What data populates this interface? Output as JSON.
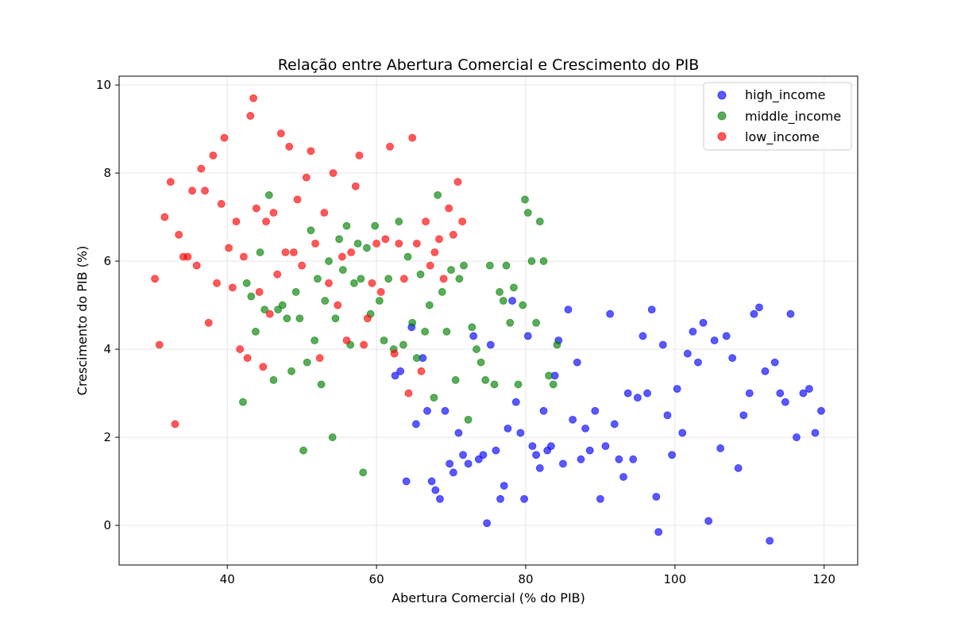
{
  "chart_data": {
    "type": "scatter",
    "title": "Relação entre Abertura Comercial e Crescimento do PIB",
    "xlabel": "Abertura Comercial (% do PIB)",
    "ylabel": "Crescimento do PIB (%)",
    "xlim": [
      25.5,
      124.5
    ],
    "ylim": [
      -0.9,
      10.2
    ],
    "x_ticks": [
      40,
      60,
      80,
      100,
      120
    ],
    "y_ticks": [
      0,
      2,
      4,
      6,
      8,
      10
    ],
    "x_tick_labels": [
      "40",
      "60",
      "80",
      "100",
      "120"
    ],
    "y_tick_labels": [
      "0",
      "2",
      "4",
      "6",
      "8",
      "10"
    ],
    "grid": true,
    "legend_position": "top-right",
    "marker_alpha": 0.65,
    "series": [
      {
        "name": "high_income",
        "color": "#0000ff",
        "points": [
          [
            62.5,
            3.4
          ],
          [
            63.2,
            3.5
          ],
          [
            64,
            1.0
          ],
          [
            64.7,
            4.5
          ],
          [
            65.3,
            2.3
          ],
          [
            66.2,
            3.8
          ],
          [
            66.8,
            2.6
          ],
          [
            67.4,
            1.0
          ],
          [
            67.9,
            0.8
          ],
          [
            68.5,
            0.6
          ],
          [
            69.2,
            2.6
          ],
          [
            69.8,
            1.4
          ],
          [
            70.3,
            1.2
          ],
          [
            71,
            2.1
          ],
          [
            71.6,
            1.6
          ],
          [
            72.3,
            1.4
          ],
          [
            73,
            4.3
          ],
          [
            73.7,
            1.5
          ],
          [
            74.3,
            1.6
          ],
          [
            74.8,
            0.05
          ],
          [
            75.3,
            4.1
          ],
          [
            76,
            1.7
          ],
          [
            76.6,
            0.6
          ],
          [
            77.1,
            0.9
          ],
          [
            77.6,
            2.2
          ],
          [
            78.2,
            5.1
          ],
          [
            78.7,
            2.8
          ],
          [
            79.3,
            2.1
          ],
          [
            79.8,
            0.6
          ],
          [
            80.3,
            4.3
          ],
          [
            80.9,
            1.8
          ],
          [
            81.4,
            1.6
          ],
          [
            81.9,
            1.3
          ],
          [
            82.4,
            2.6
          ],
          [
            82.9,
            1.7
          ],
          [
            83.4,
            1.8
          ],
          [
            83.9,
            3.4
          ],
          [
            84.4,
            4.2
          ],
          [
            85,
            1.4
          ],
          [
            85.7,
            4.9
          ],
          [
            86.3,
            2.4
          ],
          [
            86.9,
            3.7
          ],
          [
            87.4,
            1.5
          ],
          [
            88,
            2.2
          ],
          [
            88.6,
            1.7
          ],
          [
            89.3,
            2.6
          ],
          [
            90,
            0.6
          ],
          [
            90.7,
            1.8
          ],
          [
            91.3,
            4.8
          ],
          [
            91.9,
            2.3
          ],
          [
            92.5,
            1.5
          ],
          [
            93.1,
            1.1
          ],
          [
            93.7,
            3.0
          ],
          [
            94.4,
            1.5
          ],
          [
            95,
            2.9
          ],
          [
            95.7,
            4.3
          ],
          [
            96.3,
            3.0
          ],
          [
            96.9,
            4.9
          ],
          [
            97.5,
            0.65
          ],
          [
            97.8,
            -0.15
          ],
          [
            98.4,
            4.1
          ],
          [
            99,
            2.5
          ],
          [
            99.6,
            1.6
          ],
          [
            100.3,
            3.1
          ],
          [
            101,
            2.1
          ],
          [
            101.7,
            3.9
          ],
          [
            102.4,
            4.4
          ],
          [
            103.1,
            3.7
          ],
          [
            103.8,
            4.6
          ],
          [
            104.5,
            0.1
          ],
          [
            105.3,
            4.2
          ],
          [
            106.1,
            1.75
          ],
          [
            106.9,
            4.3
          ],
          [
            107.7,
            3.8
          ],
          [
            108.5,
            1.3
          ],
          [
            109.2,
            2.5
          ],
          [
            110,
            3.0
          ],
          [
            110.6,
            4.8
          ],
          [
            111.3,
            4.95
          ],
          [
            112.1,
            3.5
          ],
          [
            112.7,
            -0.35
          ],
          [
            113.4,
            3.7
          ],
          [
            114.1,
            3.0
          ],
          [
            114.8,
            2.8
          ],
          [
            115.5,
            4.8
          ],
          [
            116.3,
            2.0
          ],
          [
            117.2,
            3.0
          ],
          [
            118,
            3.1
          ],
          [
            118.8,
            2.1
          ],
          [
            119.6,
            2.6
          ]
        ]
      },
      {
        "name": "middle_income",
        "color": "#008000",
        "points": [
          [
            42.1,
            2.8
          ],
          [
            42.6,
            5.5
          ],
          [
            43.2,
            5.2
          ],
          [
            43.8,
            4.4
          ],
          [
            44.4,
            6.2
          ],
          [
            45,
            4.9
          ],
          [
            45.6,
            7.5
          ],
          [
            46.2,
            3.3
          ],
          [
            46.8,
            4.9
          ],
          [
            47.4,
            5.0
          ],
          [
            48,
            4.7
          ],
          [
            48.6,
            3.5
          ],
          [
            49.2,
            5.3
          ],
          [
            49.7,
            4.7
          ],
          [
            50.2,
            1.7
          ],
          [
            50.7,
            3.7
          ],
          [
            51.2,
            6.7
          ],
          [
            51.7,
            4.2
          ],
          [
            52.1,
            5.6
          ],
          [
            52.6,
            3.2
          ],
          [
            53.1,
            5.1
          ],
          [
            53.6,
            6.0
          ],
          [
            54.1,
            2.0
          ],
          [
            54.5,
            4.7
          ],
          [
            55,
            6.5
          ],
          [
            55.5,
            5.8
          ],
          [
            56,
            6.8
          ],
          [
            56.5,
            4.1
          ],
          [
            57,
            5.5
          ],
          [
            57.5,
            6.4
          ],
          [
            57.9,
            5.6
          ],
          [
            58.2,
            1.2
          ],
          [
            58.7,
            6.3
          ],
          [
            59.2,
            4.8
          ],
          [
            59.8,
            6.8
          ],
          [
            60.4,
            5.1
          ],
          [
            61,
            4.2
          ],
          [
            61.6,
            5.6
          ],
          [
            62.3,
            4.0
          ],
          [
            63,
            6.9
          ],
          [
            63.6,
            4.1
          ],
          [
            64.2,
            6.1
          ],
          [
            64.8,
            4.6
          ],
          [
            65.4,
            3.8
          ],
          [
            65.9,
            5.7
          ],
          [
            66.5,
            4.4
          ],
          [
            67.1,
            5.0
          ],
          [
            67.7,
            2.9
          ],
          [
            68.2,
            7.5
          ],
          [
            68.8,
            5.3
          ],
          [
            69.4,
            4.4
          ],
          [
            70,
            5.8
          ],
          [
            70.6,
            3.3
          ],
          [
            71.1,
            5.6
          ],
          [
            71.7,
            5.9
          ],
          [
            72.3,
            2.4
          ],
          [
            72.8,
            4.5
          ],
          [
            73.4,
            4.0
          ],
          [
            74,
            3.7
          ],
          [
            74.6,
            3.3
          ],
          [
            75.2,
            5.9
          ],
          [
            75.8,
            3.2
          ],
          [
            76.5,
            5.3
          ],
          [
            77,
            5.1
          ],
          [
            77.4,
            5.9
          ],
          [
            77.9,
            4.6
          ],
          [
            78.4,
            5.4
          ],
          [
            79,
            3.2
          ],
          [
            79.6,
            5.0
          ],
          [
            79.9,
            7.4
          ],
          [
            80.3,
            7.1
          ],
          [
            80.8,
            6.0
          ],
          [
            81.4,
            4.6
          ],
          [
            81.9,
            6.9
          ],
          [
            82.4,
            6.0
          ],
          [
            83.1,
            3.4
          ],
          [
            83.7,
            3.2
          ],
          [
            84.2,
            4.1
          ]
        ]
      },
      {
        "name": "low_income",
        "color": "#ff0000",
        "points": [
          [
            30.3,
            5.6
          ],
          [
            30.9,
            4.1
          ],
          [
            31.6,
            7.0
          ],
          [
            32.4,
            7.8
          ],
          [
            33,
            2.3
          ],
          [
            33.5,
            6.6
          ],
          [
            34.1,
            6.1
          ],
          [
            34.7,
            6.1
          ],
          [
            35.3,
            7.6
          ],
          [
            35.9,
            5.9
          ],
          [
            36.5,
            8.1
          ],
          [
            37,
            7.6
          ],
          [
            37.5,
            4.6
          ],
          [
            38.1,
            8.4
          ],
          [
            38.6,
            5.5
          ],
          [
            39.2,
            7.3
          ],
          [
            39.6,
            8.8
          ],
          [
            40.2,
            6.3
          ],
          [
            40.7,
            5.4
          ],
          [
            41.2,
            6.9
          ],
          [
            41.7,
            4.0
          ],
          [
            42.2,
            6.1
          ],
          [
            42.7,
            3.8
          ],
          [
            43.1,
            9.3
          ],
          [
            43.5,
            9.7
          ],
          [
            43.9,
            7.2
          ],
          [
            44.3,
            5.3
          ],
          [
            44.8,
            3.6
          ],
          [
            45.2,
            6.9
          ],
          [
            45.7,
            4.8
          ],
          [
            46.2,
            7.1
          ],
          [
            46.7,
            5.7
          ],
          [
            47.2,
            8.9
          ],
          [
            47.8,
            6.2
          ],
          [
            48.3,
            8.6
          ],
          [
            48.9,
            6.2
          ],
          [
            49.4,
            7.4
          ],
          [
            50,
            5.9
          ],
          [
            50.6,
            7.9
          ],
          [
            51.2,
            8.5
          ],
          [
            51.8,
            6.4
          ],
          [
            52.4,
            3.8
          ],
          [
            53,
            7.1
          ],
          [
            53.6,
            5.5
          ],
          [
            54.2,
            8.0
          ],
          [
            54.8,
            5.0
          ],
          [
            55.4,
            6.1
          ],
          [
            56,
            4.2
          ],
          [
            56.6,
            6.2
          ],
          [
            57.2,
            7.7
          ],
          [
            57.7,
            8.4
          ],
          [
            58.3,
            4.1
          ],
          [
            58.8,
            4.7
          ],
          [
            59.4,
            5.5
          ],
          [
            60,
            6.4
          ],
          [
            60.6,
            5.3
          ],
          [
            61.2,
            6.5
          ],
          [
            61.8,
            8.6
          ],
          [
            62.4,
            3.9
          ],
          [
            63,
            6.4
          ],
          [
            63.7,
            5.6
          ],
          [
            64.3,
            3.0
          ],
          [
            64.8,
            8.8
          ],
          [
            65.4,
            6.4
          ],
          [
            66,
            3.5
          ],
          [
            66.6,
            6.9
          ],
          [
            67.2,
            5.9
          ],
          [
            67.8,
            6.2
          ],
          [
            68.4,
            6.5
          ],
          [
            69,
            5.6
          ],
          [
            69.7,
            7.2
          ],
          [
            70.3,
            6.6
          ],
          [
            70.9,
            7.8
          ],
          [
            71.5,
            6.9
          ]
        ]
      }
    ]
  }
}
